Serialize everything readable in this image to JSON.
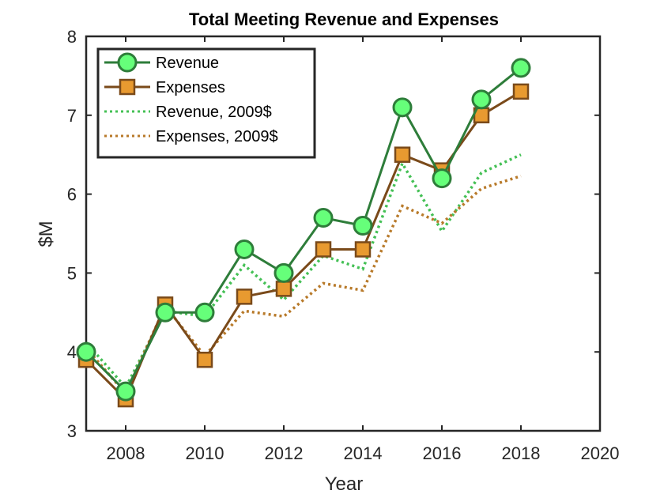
{
  "chart_data": {
    "type": "line",
    "title": "Total Meeting Revenue and Expenses",
    "xlabel": "Year",
    "ylabel": "$M",
    "xlim": [
      2007,
      2020
    ],
    "ylim": [
      3,
      8
    ],
    "xticks": [
      2008,
      2010,
      2012,
      2014,
      2016,
      2018,
      2020
    ],
    "yticks": [
      3,
      4,
      5,
      6,
      7,
      8
    ],
    "grid": false,
    "legend_position": "top-left",
    "x": [
      2007,
      2008,
      2009,
      2010,
      2011,
      2012,
      2013,
      2014,
      2015,
      2016,
      2017,
      2018
    ],
    "series": [
      {
        "name": "Revenue",
        "style": "solid",
        "marker": "circle",
        "color": "#2e7d3a",
        "fill": "#66ff7a",
        "values": [
          4.0,
          3.5,
          4.5,
          4.5,
          5.3,
          5.0,
          5.7,
          5.6,
          7.1,
          6.2,
          7.2,
          7.6
        ]
      },
      {
        "name": "Expenses",
        "style": "solid",
        "marker": "square",
        "color": "#7a4a1a",
        "fill": "#e89a30",
        "values": [
          3.9,
          3.4,
          4.6,
          3.9,
          4.7,
          4.8,
          5.3,
          5.3,
          6.5,
          6.3,
          7.0,
          7.3
        ]
      },
      {
        "name": "Revenue, 2009$",
        "style": "dotted",
        "marker": "none",
        "color": "#44c055",
        "values": [
          4.12,
          3.55,
          4.52,
          4.45,
          5.1,
          4.66,
          5.22,
          5.05,
          6.39,
          5.53,
          6.27,
          6.5
        ]
      },
      {
        "name": "Expenses, 2009$",
        "style": "dotted",
        "marker": "none",
        "color": "#b87a2a",
        "values": [
          4.05,
          3.47,
          4.58,
          3.95,
          4.52,
          4.45,
          4.87,
          4.78,
          5.85,
          5.63,
          6.07,
          6.23
        ]
      }
    ]
  }
}
